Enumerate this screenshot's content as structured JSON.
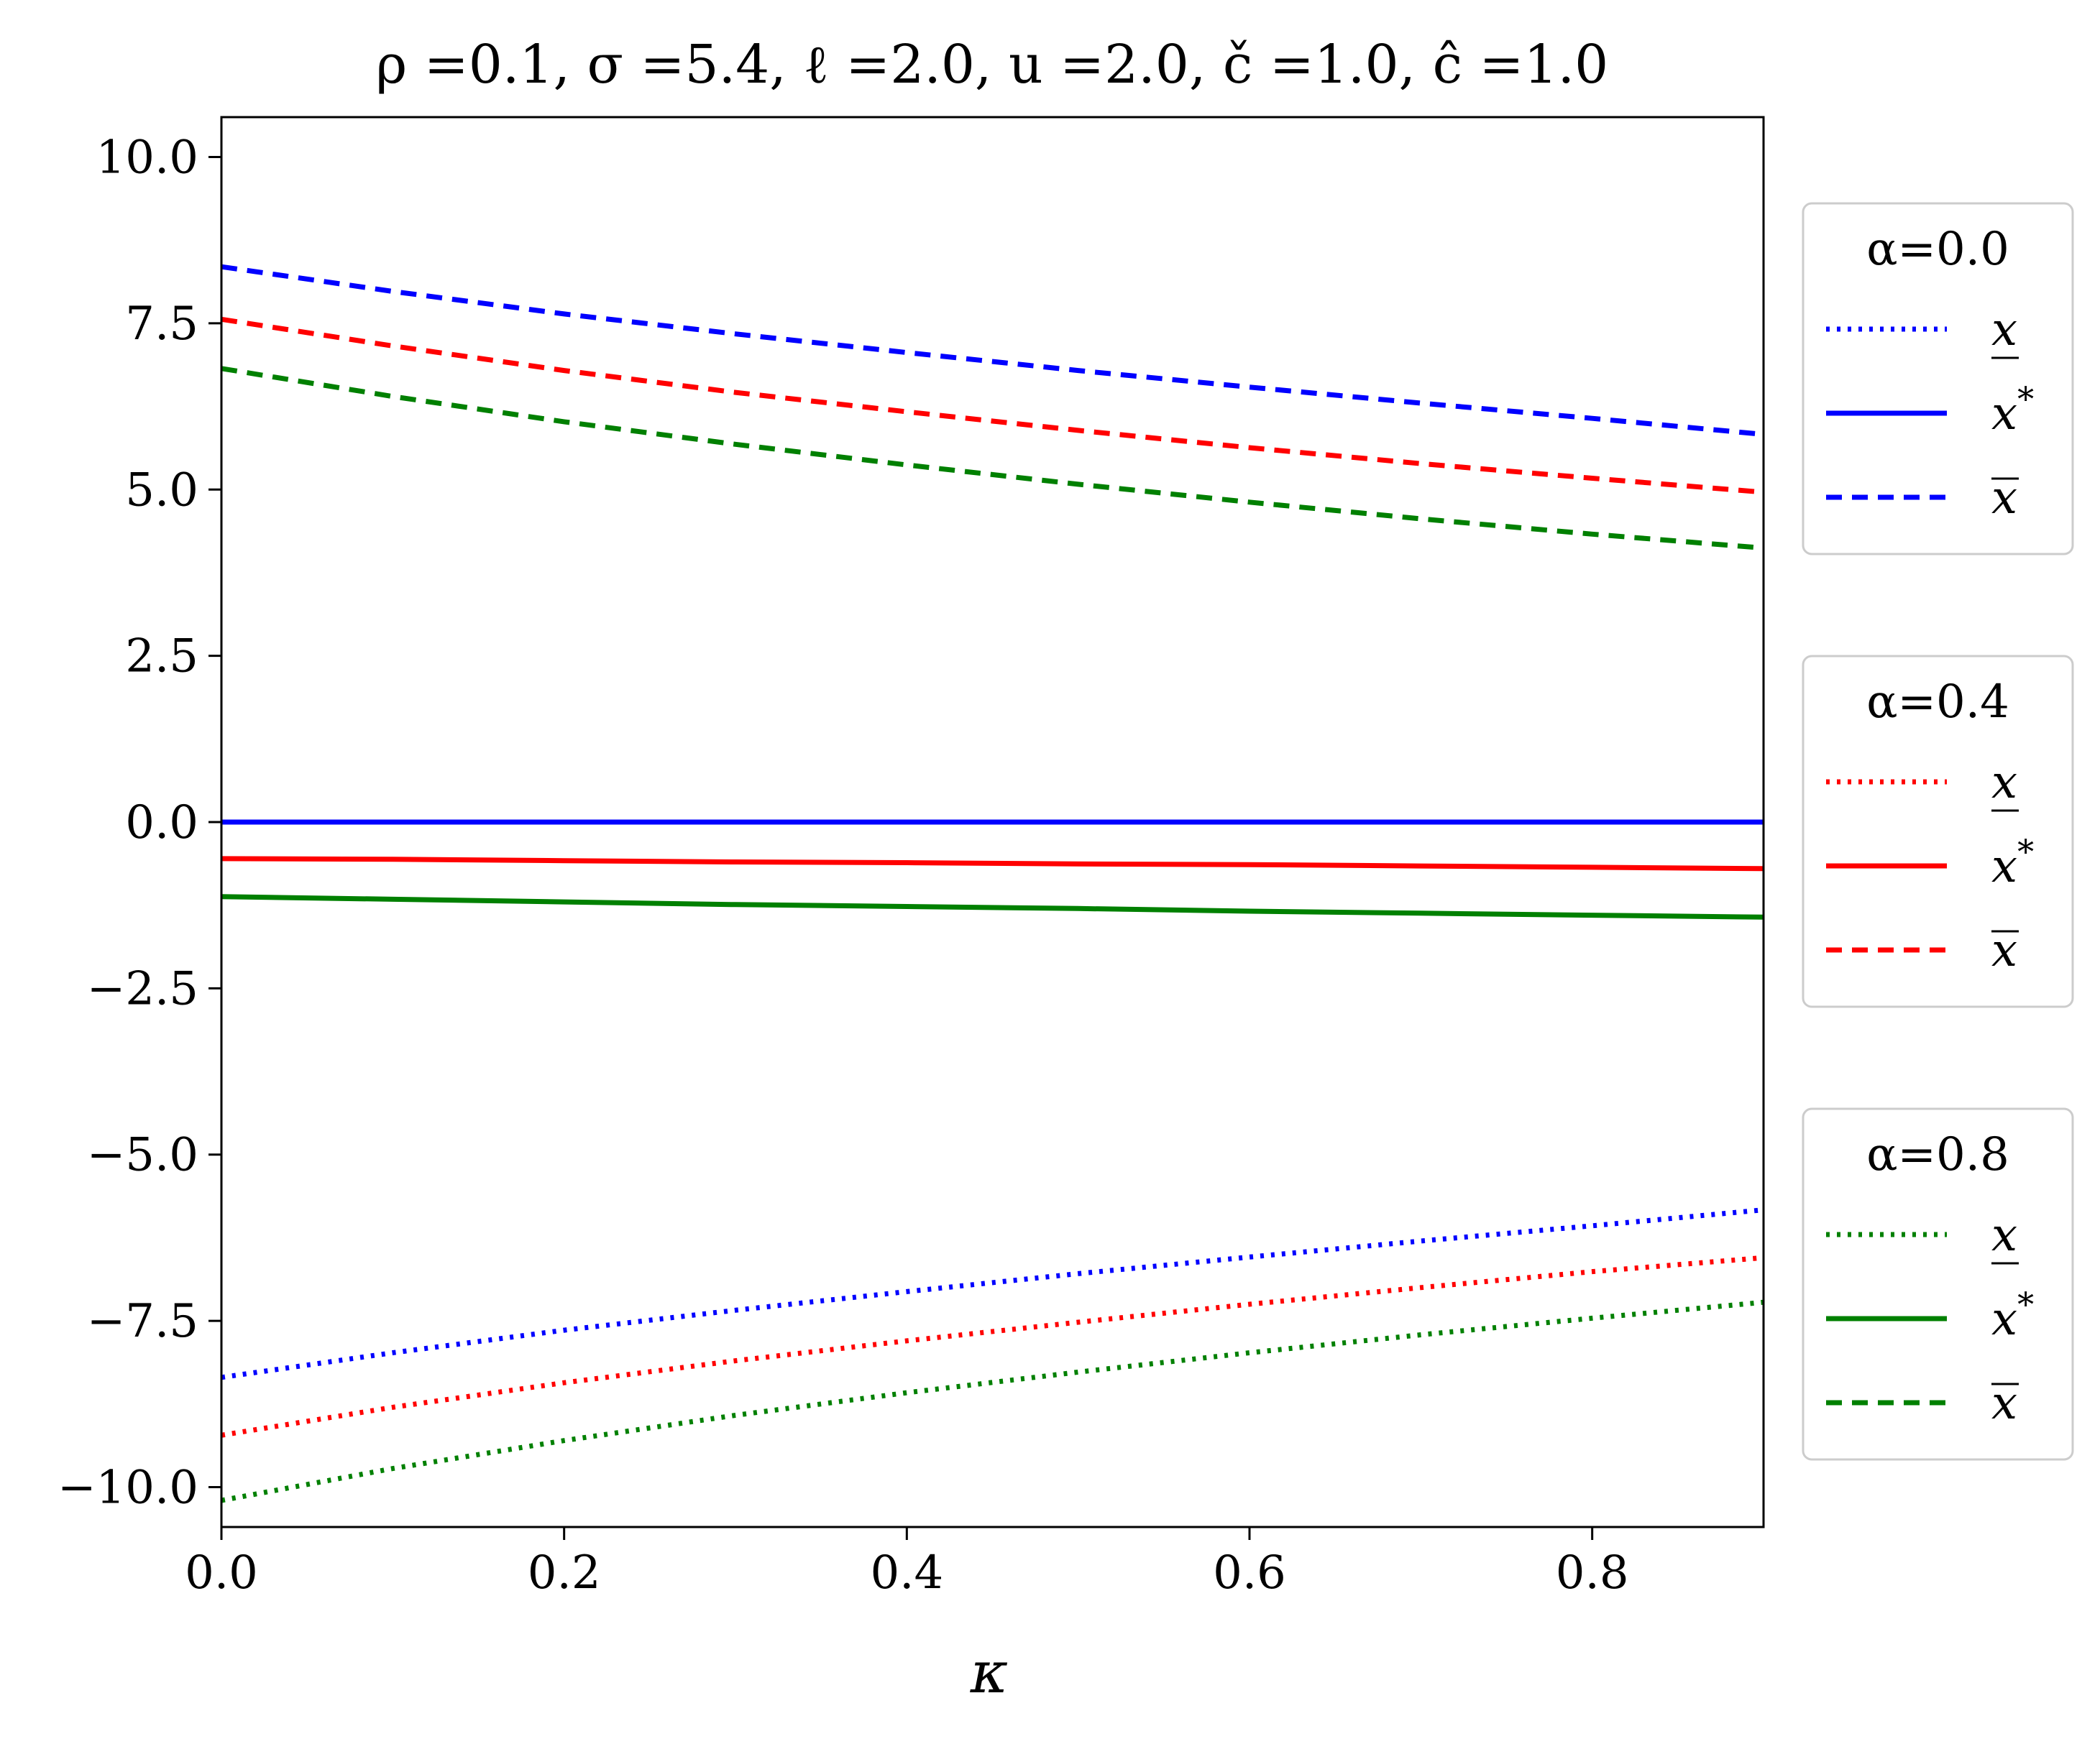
{
  "chart_data": {
    "type": "line",
    "title": "ρ =0.1, σ =5.4, ℓ =2.0, u =2.0, č =1.0, ĉ =1.0",
    "xlabel": "κ",
    "ylabel": "",
    "xlim": [
      0.0,
      0.9
    ],
    "ylim": [
      -10.6,
      10.6
    ],
    "xticks": [
      "0.0",
      "0.2",
      "0.4",
      "0.6",
      "0.8"
    ],
    "yticks": [
      "10.0",
      "7.5",
      "5.0",
      "2.5",
      "0.0",
      "−2.5",
      "−5.0",
      "−7.5",
      "−10.0"
    ],
    "x": [
      0.0,
      0.1,
      0.2,
      0.3,
      0.4,
      0.5,
      0.6,
      0.7,
      0.8,
      0.9
    ],
    "colors": {
      "alpha_0.0": "#0000ff",
      "alpha_0.4": "#ff0000",
      "alpha_0.8": "#008000"
    },
    "legends": [
      {
        "title": "α=0.0",
        "color": "#0000ff",
        "entries": [
          {
            "label": "x",
            "style": "dotted",
            "overline": false,
            "underline": true
          },
          {
            "label": "x*",
            "style": "solid",
            "overline": false,
            "underline": false
          },
          {
            "label": "x",
            "style": "dashed",
            "overline": true,
            "underline": false
          }
        ]
      },
      {
        "title": "α=0.4",
        "color": "#ff0000",
        "entries": [
          {
            "label": "x",
            "style": "dotted",
            "overline": false,
            "underline": true
          },
          {
            "label": "x*",
            "style": "solid",
            "overline": false,
            "underline": false
          },
          {
            "label": "x",
            "style": "dashed",
            "overline": true,
            "underline": false
          }
        ]
      },
      {
        "title": "α=0.8",
        "color": "#008000",
        "entries": [
          {
            "label": "x",
            "style": "dotted",
            "overline": false,
            "underline": true
          },
          {
            "label": "x*",
            "style": "solid",
            "overline": false,
            "underline": false
          },
          {
            "label": "x",
            "style": "dashed",
            "overline": true,
            "underline": false
          }
        ]
      }
    ],
    "series": [
      {
        "alpha": 0.0,
        "kind": "lower",
        "style": "dotted",
        "color": "#0000ff",
        "values": [
          -8.35,
          -7.98,
          -7.64,
          -7.34,
          -7.06,
          -6.79,
          -6.54,
          -6.3,
          -6.07,
          -5.83
        ]
      },
      {
        "alpha": 0.0,
        "kind": "star",
        "style": "solid",
        "color": "#0000ff",
        "values": [
          0.0,
          0.0,
          0.0,
          0.0,
          0.0,
          0.0,
          0.0,
          0.0,
          0.0,
          0.0
        ]
      },
      {
        "alpha": 0.0,
        "kind": "upper",
        "style": "dashed",
        "color": "#0000ff",
        "values": [
          8.35,
          7.98,
          7.64,
          7.34,
          7.06,
          6.79,
          6.54,
          6.3,
          6.07,
          5.83
        ]
      },
      {
        "alpha": 0.4,
        "kind": "lower",
        "style": "dotted",
        "color": "#ff0000",
        "values": [
          -9.22,
          -8.8,
          -8.43,
          -8.1,
          -7.8,
          -7.52,
          -7.25,
          -7.0,
          -6.76,
          -6.55
        ]
      },
      {
        "alpha": 0.4,
        "kind": "star",
        "style": "solid",
        "color": "#ff0000",
        "values": [
          -0.55,
          -0.56,
          -0.58,
          -0.6,
          -0.61,
          -0.63,
          -0.64,
          -0.66,
          -0.68,
          -0.7
        ]
      },
      {
        "alpha": 0.4,
        "kind": "upper",
        "style": "dashed",
        "color": "#ff0000",
        "values": [
          7.56,
          7.16,
          6.79,
          6.46,
          6.17,
          5.89,
          5.63,
          5.39,
          5.17,
          4.96
        ]
      },
      {
        "alpha": 0.8,
        "kind": "lower",
        "style": "dotted",
        "color": "#008000",
        "values": [
          -10.2,
          -9.72,
          -9.3,
          -8.92,
          -8.58,
          -8.27,
          -7.98,
          -7.71,
          -7.46,
          -7.22
        ]
      },
      {
        "alpha": 0.8,
        "kind": "star",
        "style": "solid",
        "color": "#008000",
        "values": [
          -1.12,
          -1.16,
          -1.2,
          -1.24,
          -1.27,
          -1.3,
          -1.34,
          -1.37,
          -1.4,
          -1.43
        ]
      },
      {
        "alpha": 0.8,
        "kind": "upper",
        "style": "dashed",
        "color": "#008000",
        "values": [
          6.82,
          6.4,
          6.02,
          5.68,
          5.37,
          5.08,
          4.81,
          4.56,
          4.33,
          4.12
        ]
      }
    ]
  }
}
